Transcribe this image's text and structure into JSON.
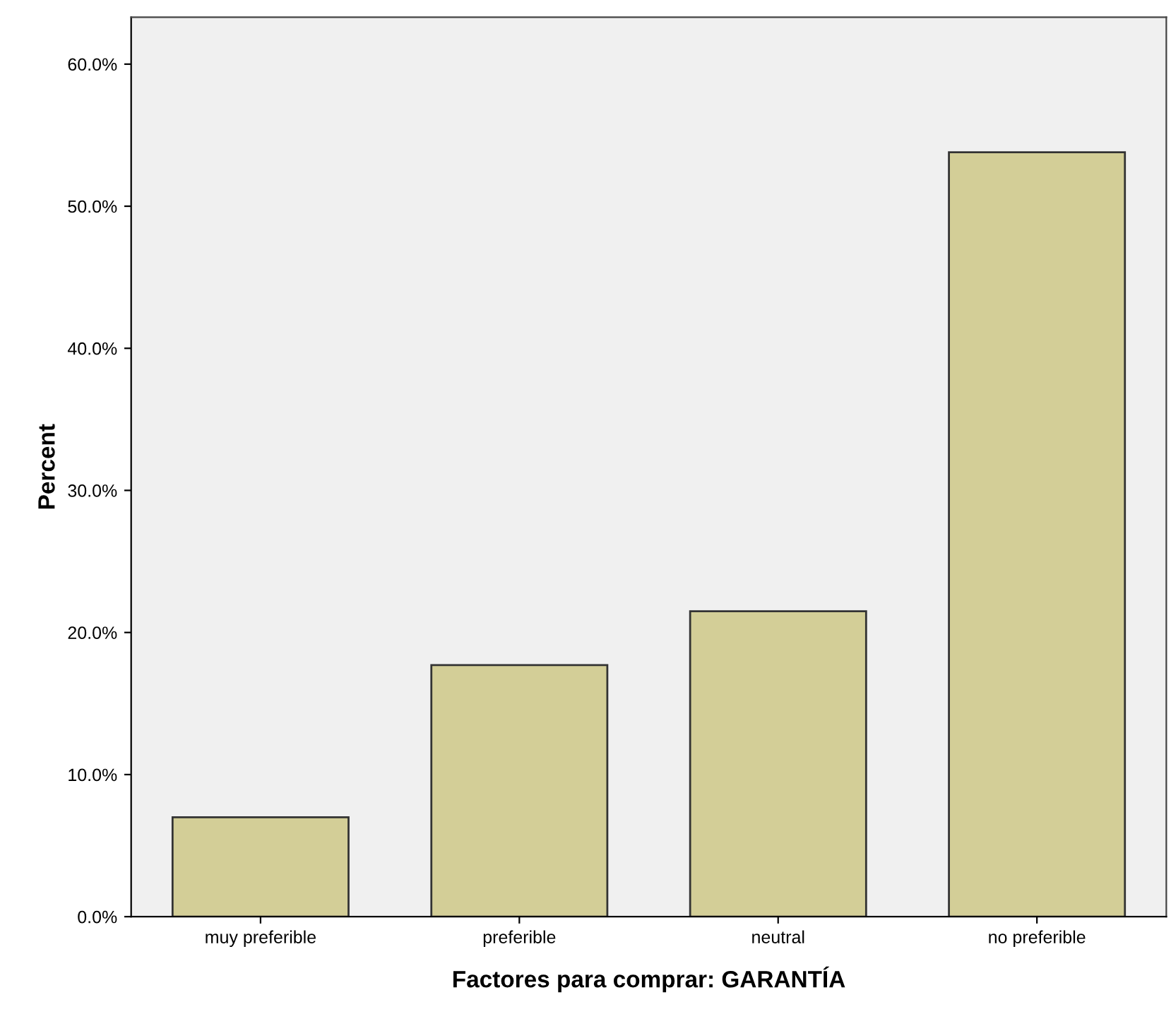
{
  "chart_data": {
    "type": "bar",
    "xlabel": "Factores para comprar: GARANTÍA",
    "ylabel": "Percent",
    "categories": [
      "muy preferible",
      "preferible",
      "neutral",
      "no preferible"
    ],
    "values": [
      7.0,
      17.7,
      21.5,
      53.8
    ],
    "color": "#d3ce97",
    "ylim": [
      0,
      63.3
    ],
    "yticks": [
      {
        "value": 0,
        "label": "0.0%"
      },
      {
        "value": 10,
        "label": "10.0%"
      },
      {
        "value": 20,
        "label": "20.0%"
      },
      {
        "value": 30,
        "label": "30.0%"
      },
      {
        "value": 40,
        "label": "40.0%"
      },
      {
        "value": 50,
        "label": "50.0%"
      },
      {
        "value": 60,
        "label": "60.0%"
      }
    ],
    "grid": false
  }
}
